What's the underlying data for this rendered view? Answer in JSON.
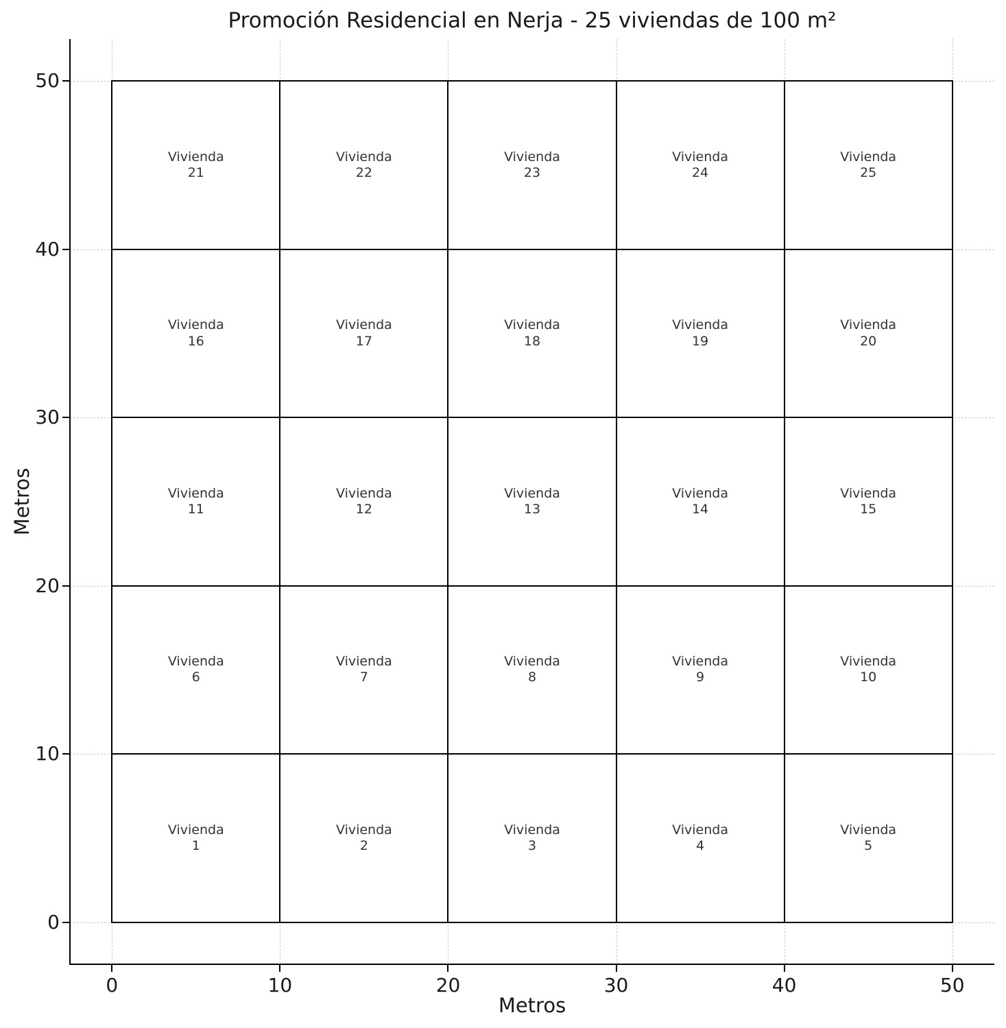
{
  "chart_data": {
    "type": "rectangle-grid",
    "title": "Promoción Residencial en Nerja - 25 viviendas de 100 m²",
    "xlabel": "Metros",
    "ylabel": "Metros",
    "xlim": [
      -2.5,
      52.5
    ],
    "ylim": [
      -2.5,
      52.5
    ],
    "xticks": [
      0,
      10,
      20,
      30,
      40,
      50
    ],
    "yticks": [
      0,
      10,
      20,
      30,
      40,
      50
    ],
    "grid": true,
    "grid_style": "dashed",
    "legend": "none",
    "unit_count": 25,
    "unit_area_m2": 100,
    "unit_width_m": 10,
    "unit_height_m": 10,
    "units": [
      {
        "label": "Vivienda",
        "number": 1,
        "x": 0,
        "y": 0,
        "width": 10,
        "height": 10
      },
      {
        "label": "Vivienda",
        "number": 2,
        "x": 10,
        "y": 0,
        "width": 10,
        "height": 10
      },
      {
        "label": "Vivienda",
        "number": 3,
        "x": 20,
        "y": 0,
        "width": 10,
        "height": 10
      },
      {
        "label": "Vivienda",
        "number": 4,
        "x": 30,
        "y": 0,
        "width": 10,
        "height": 10
      },
      {
        "label": "Vivienda",
        "number": 5,
        "x": 40,
        "y": 0,
        "width": 10,
        "height": 10
      },
      {
        "label": "Vivienda",
        "number": 6,
        "x": 0,
        "y": 10,
        "width": 10,
        "height": 10
      },
      {
        "label": "Vivienda",
        "number": 7,
        "x": 10,
        "y": 10,
        "width": 10,
        "height": 10
      },
      {
        "label": "Vivienda",
        "number": 8,
        "x": 20,
        "y": 10,
        "width": 10,
        "height": 10
      },
      {
        "label": "Vivienda",
        "number": 9,
        "x": 30,
        "y": 10,
        "width": 10,
        "height": 10
      },
      {
        "label": "Vivienda",
        "number": 10,
        "x": 40,
        "y": 10,
        "width": 10,
        "height": 10
      },
      {
        "label": "Vivienda",
        "number": 11,
        "x": 0,
        "y": 20,
        "width": 10,
        "height": 10
      },
      {
        "label": "Vivienda",
        "number": 12,
        "x": 10,
        "y": 20,
        "width": 10,
        "height": 10
      },
      {
        "label": "Vivienda",
        "number": 13,
        "x": 20,
        "y": 20,
        "width": 10,
        "height": 10
      },
      {
        "label": "Vivienda",
        "number": 14,
        "x": 30,
        "y": 20,
        "width": 10,
        "height": 10
      },
      {
        "label": "Vivienda",
        "number": 15,
        "x": 40,
        "y": 20,
        "width": 10,
        "height": 10
      },
      {
        "label": "Vivienda",
        "number": 16,
        "x": 0,
        "y": 30,
        "width": 10,
        "height": 10
      },
      {
        "label": "Vivienda",
        "number": 17,
        "x": 10,
        "y": 30,
        "width": 10,
        "height": 10
      },
      {
        "label": "Vivienda",
        "number": 18,
        "x": 20,
        "y": 30,
        "width": 10,
        "height": 10
      },
      {
        "label": "Vivienda",
        "number": 19,
        "x": 30,
        "y": 30,
        "width": 10,
        "height": 10
      },
      {
        "label": "Vivienda",
        "number": 20,
        "x": 40,
        "y": 30,
        "width": 10,
        "height": 10
      },
      {
        "label": "Vivienda",
        "number": 21,
        "x": 0,
        "y": 40,
        "width": 10,
        "height": 10
      },
      {
        "label": "Vivienda",
        "number": 22,
        "x": 10,
        "y": 40,
        "width": 10,
        "height": 10
      },
      {
        "label": "Vivienda",
        "number": 23,
        "x": 20,
        "y": 40,
        "width": 10,
        "height": 10
      },
      {
        "label": "Vivienda",
        "number": 24,
        "x": 30,
        "y": 40,
        "width": 10,
        "height": 10
      },
      {
        "label": "Vivienda",
        "number": 25,
        "x": 40,
        "y": 40,
        "width": 10,
        "height": 10
      }
    ],
    "colors": {
      "background": "#ffffff",
      "cell_fill": "#ffffff",
      "cell_border": "#000000",
      "grid_line": "#cccccc",
      "axis": "#000000",
      "tick_label": "#1a1a1a",
      "cell_label": "#333333",
      "title": "#1a1a1a"
    }
  }
}
